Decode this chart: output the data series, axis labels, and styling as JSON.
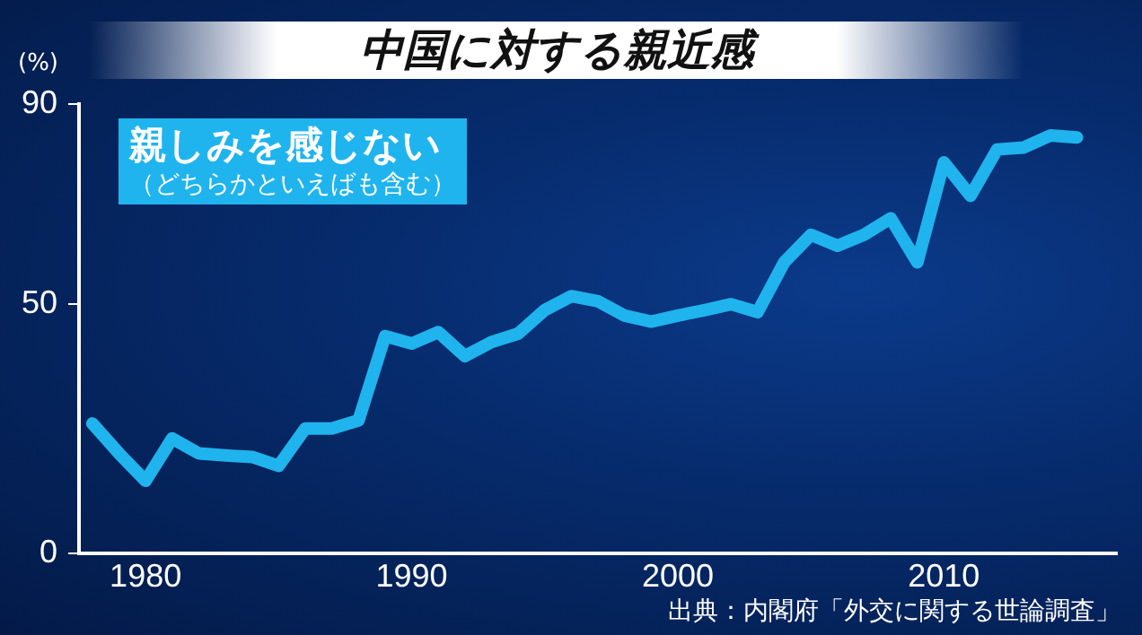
{
  "chart_data": {
    "type": "line",
    "title": "中国に対する親近感",
    "ylabel": "(%)",
    "x": [
      1978,
      1979,
      1980,
      1981,
      1982,
      1983,
      1984,
      1985,
      1986,
      1987,
      1988,
      1989,
      1990,
      1991,
      1992,
      1993,
      1994,
      1995,
      1996,
      1997,
      1998,
      1999,
      2000,
      2001,
      2002,
      2003,
      2004,
      2005,
      2006,
      2007,
      2008,
      2009,
      2010,
      2011,
      2012,
      2013,
      2014,
      2015
    ],
    "series": [
      {
        "name": "親しみを感じない",
        "color": "#1fb4ee",
        "values": [
          26,
          20,
          14.5,
          23,
          20,
          19.6,
          19.3,
          17.5,
          25,
          25,
          26.6,
          43.5,
          42,
          44.3,
          39.5,
          42.3,
          44,
          48.7,
          51.5,
          50.5,
          47.6,
          46.4,
          47.6,
          48.7,
          49.9,
          48.3,
          58.3,
          63.8,
          61.6,
          63.8,
          67.1,
          58.3,
          78.3,
          71.6,
          80.9,
          81.3,
          83.7,
          83.3
        ]
      }
    ],
    "xlim": [
      1977.5,
      2016.5
    ],
    "xticks": [
      1980,
      1990,
      2000,
      2010
    ],
    "ylim": [
      0,
      90
    ],
    "yticks": [
      0,
      50,
      90
    ],
    "grid": false,
    "legend": false,
    "marker": "none",
    "line_style": "solid",
    "annotations": [
      "（どちらかといえばも含む）",
      "出典：内閣府「外交に関する世論調査」"
    ]
  }
}
